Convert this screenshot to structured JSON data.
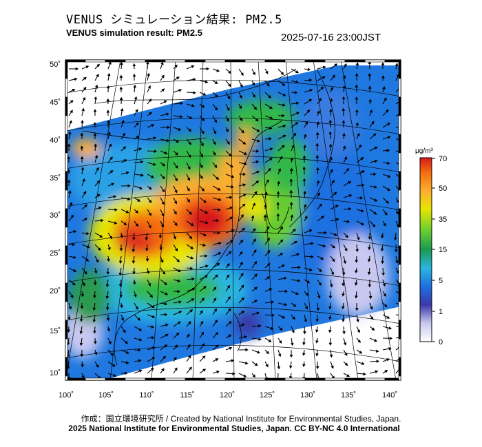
{
  "title_jp": "VENUS シミュレーション結果: PM2.5",
  "title_en": "VENUS simulation result: PM2.5",
  "datetime": "2025-07-16 23:00JST",
  "axes": {
    "lat_ticks": [
      "50˚",
      "45˚",
      "40˚",
      "35˚",
      "30˚",
      "25˚",
      "20˚",
      "15˚",
      "10˚"
    ],
    "lon_ticks": [
      "100˚",
      "105˚",
      "110˚",
      "115˚",
      "120˚",
      "125˚",
      "130˚",
      "135˚",
      "140˚"
    ]
  },
  "colorbar": {
    "unit": "μg/m³",
    "labels": [
      "70",
      "50",
      "35",
      "15",
      "5",
      "1",
      "0"
    ],
    "colors": [
      "#d7191c",
      "#f46d0f",
      "#fdae30",
      "#e6e600",
      "#66cc33",
      "#1a9850",
      "#2bb6e0",
      "#1f6fe0",
      "#3a3aa8",
      "#c8c8f0"
    ]
  },
  "credit_line1": "作成：国立環境研究所 / Created by National Institute for Environmental Studies, Japan.",
  "credit_line2": "2025 National Institute for Environmental Studies, Japan. CC BY-NC 4.0 International"
}
